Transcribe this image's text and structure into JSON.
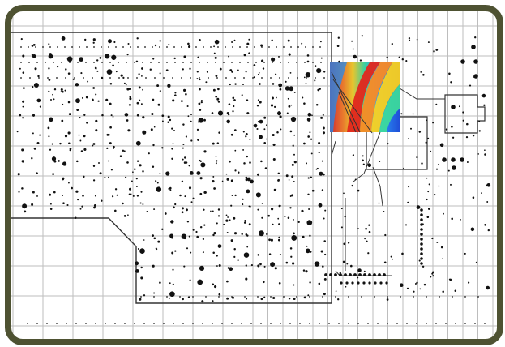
{
  "map": {
    "frame_color": "#4e5232",
    "grid_line_color": "#bdbdbd",
    "boundary_color": "#333333",
    "marker_color": "#111111",
    "heatmap": {
      "palette": [
        "#1f4fd8",
        "#2fa6ff",
        "#3ddc9a",
        "#b6e33b",
        "#ffd21a",
        "#ff7a1a",
        "#e3261c"
      ]
    }
  }
}
